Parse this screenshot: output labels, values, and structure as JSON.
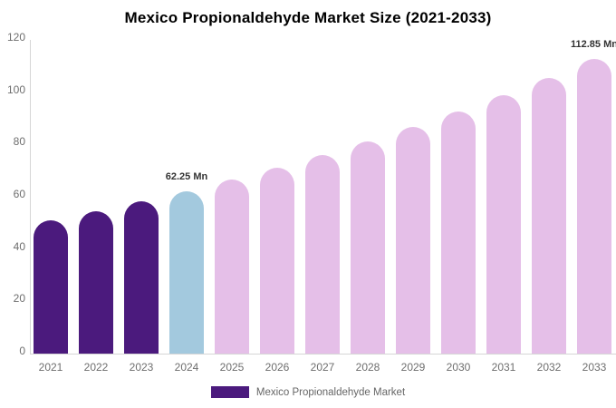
{
  "chart_data": {
    "type": "bar",
    "title": "Mexico Propionaldehyde Market Size (2021-2033)",
    "categories": [
      "2021",
      "2022",
      "2023",
      "2024",
      "2025",
      "2026",
      "2027",
      "2028",
      "2029",
      "2030",
      "2031",
      "2032",
      "2033"
    ],
    "values": [
      51.0,
      54.5,
      58.2,
      62.25,
      66.5,
      71.0,
      75.9,
      81.1,
      86.6,
      92.5,
      98.9,
      105.6,
      112.85
    ],
    "unit": "Mn",
    "xlabel": "",
    "ylabel": "",
    "ylim": [
      0,
      120
    ],
    "yticks": [
      0,
      20,
      40,
      60,
      80,
      100,
      120
    ],
    "grid": false,
    "legend_position": "bottom",
    "data_labels": [
      {
        "index": 3,
        "text": "62.25 Mn"
      },
      {
        "index": 12,
        "text": "112.85 Mn"
      }
    ],
    "color_roles": [
      "past",
      "past",
      "past",
      "current",
      "forecast",
      "forecast",
      "forecast",
      "forecast",
      "forecast",
      "forecast",
      "forecast",
      "forecast",
      "forecast"
    ],
    "colors": {
      "past": "#4b1a7d",
      "current": "#a3c9de",
      "forecast": "#e5bfe8",
      "axis": "#d6d6d6",
      "tick_text": "#6e6e6e",
      "data_label_text": "#333333",
      "title_text": "#000000"
    },
    "legend": {
      "label": "Mexico Propionaldehyde Market",
      "swatch_color": "#4b1a7d"
    }
  }
}
